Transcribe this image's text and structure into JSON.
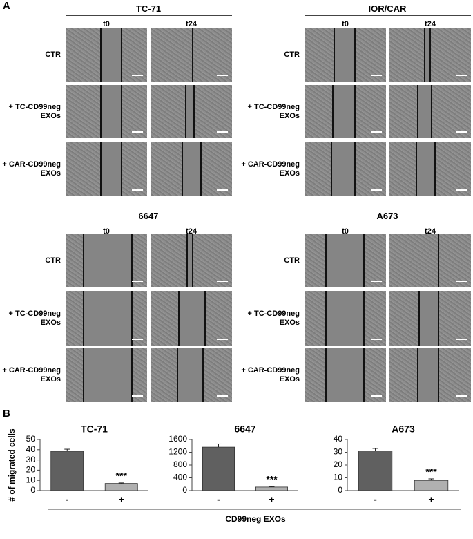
{
  "panel_a": {
    "label": "A",
    "blocks": [
      {
        "title": "TC-71",
        "columns": [
          "t0",
          "t24"
        ],
        "rows": [
          "CTR",
          "+ TC-CD99neg EXOs",
          "+ CAR-CD99neg EXOs"
        ]
      },
      {
        "title": "IOR/CAR",
        "columns": [
          "t0",
          "t24"
        ],
        "rows": [
          "CTR",
          "+ TC-CD99neg EXOs",
          "+ CAR-CD99neg EXOs"
        ]
      },
      {
        "title": "6647",
        "columns": [
          "t0",
          "t24"
        ],
        "rows": [
          "CTR",
          "+ TC-CD99neg EXOs",
          "+ CAR-CD99neg EXOs"
        ]
      },
      {
        "title": "A673",
        "columns": [
          "t0",
          "t24"
        ],
        "rows": [
          "CTR",
          "+ TC-CD99neg EXOs",
          "+ CAR-CD99neg EXOs"
        ]
      }
    ]
  },
  "panel_b": {
    "label": "B",
    "ylabel": "# of migrated cells",
    "xlabel": "CD99neg EXOs"
  },
  "chart_data": [
    {
      "type": "bar",
      "title": "TC-71",
      "categories": [
        "-",
        "+"
      ],
      "values": [
        38.5,
        7
      ],
      "errors": [
        2,
        0.5
      ],
      "annotations": [
        null,
        "***"
      ],
      "colors": [
        "#606060",
        "#b0b0b0"
      ],
      "ylim": [
        0,
        50
      ],
      "yticks": [
        0,
        10,
        20,
        30,
        40,
        50
      ]
    },
    {
      "type": "bar",
      "title": "6647",
      "categories": [
        "-",
        "+"
      ],
      "values": [
        1360,
        110
      ],
      "errors": [
        100,
        20
      ],
      "annotations": [
        null,
        "***"
      ],
      "colors": [
        "#606060",
        "#b0b0b0"
      ],
      "ylim": [
        0,
        1600
      ],
      "yticks": [
        0,
        400,
        800,
        1200,
        1600
      ]
    },
    {
      "type": "bar",
      "title": "A673",
      "categories": [
        "-",
        "+"
      ],
      "values": [
        31,
        8
      ],
      "errors": [
        2,
        1.2
      ],
      "annotations": [
        null,
        "***"
      ],
      "colors": [
        "#606060",
        "#b0b0b0"
      ],
      "ylim": [
        0,
        40
      ],
      "yticks": [
        0,
        10,
        20,
        30,
        40
      ]
    }
  ]
}
